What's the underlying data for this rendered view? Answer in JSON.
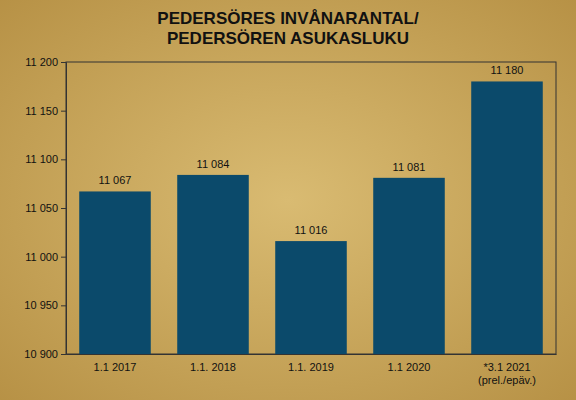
{
  "chart_data": {
    "type": "bar",
    "title": [
      "PEDERSÖRES INVÅNARANTAL/",
      "PEDERSÖREN ASUKASLUKU"
    ],
    "categories": [
      "1.1 2017",
      "1.1. 2018",
      "1.1. 2019",
      "1.1 2020",
      "*3.1 2021\n(prel./epäv.)"
    ],
    "values": [
      11067,
      11084,
      11016,
      11081,
      11180
    ],
    "value_labels": [
      "11 067",
      "11 084",
      "11 016",
      "11 081",
      "11 180"
    ],
    "data_labels": true,
    "color": "#0b4a6b",
    "ylim": [
      10900,
      11200
    ],
    "yticks": [
      {
        "value": 10900,
        "label": "10 900"
      },
      {
        "value": 10950,
        "label": "10 950"
      },
      {
        "value": 11000,
        "label": "11 000"
      },
      {
        "value": 11050,
        "label": "11 050"
      },
      {
        "value": 11100,
        "label": "11 100"
      },
      {
        "value": 11150,
        "label": "11 150"
      },
      {
        "value": 11200,
        "label": "11 200"
      }
    ],
    "grid": false
  }
}
